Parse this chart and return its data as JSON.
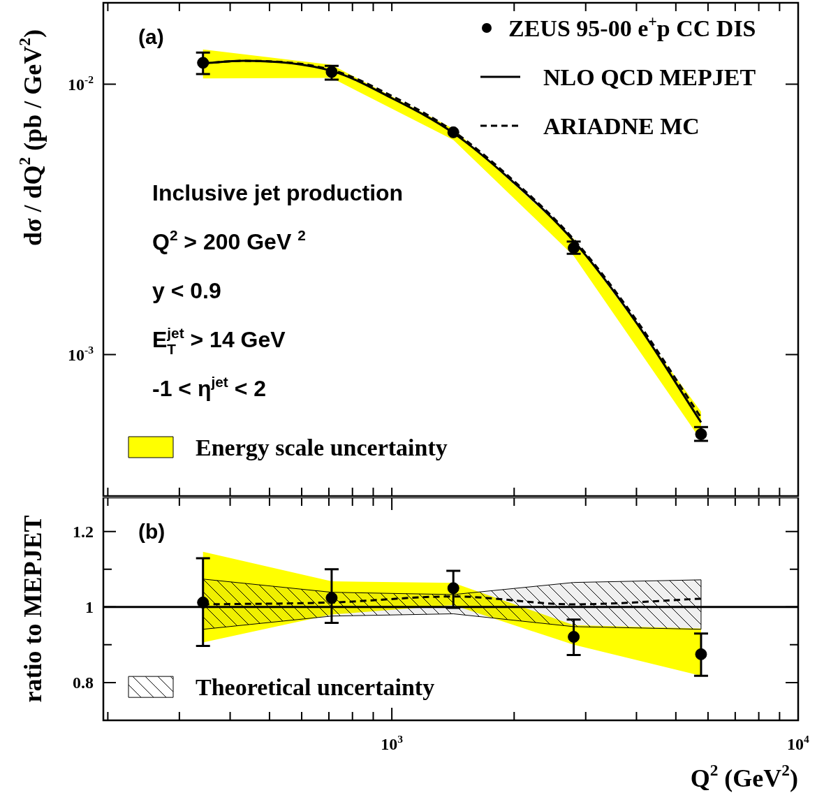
{
  "chart_data": [
    {
      "type": "line",
      "ylabel": "dσ / dQ$^{2}$ (pb / GeV$^{2}$)",
      "log": "xy",
      "xlim": [
        195,
        10000
      ],
      "ylim": [
        0.0003,
        0.02
      ],
      "tick_labels": "y",
      "legend": "top right",
      "xticks": [
        {
          "value": 200,
          "label": null
        },
        {
          "value": 300,
          "label": null
        },
        {
          "value": 400,
          "label": null
        },
        {
          "value": 500,
          "label": null
        },
        {
          "value": 600,
          "label": null
        },
        {
          "value": 700,
          "label": null
        },
        {
          "value": 800,
          "label": null
        },
        {
          "value": 900,
          "label": null
        },
        {
          "value": 1000,
          "label": null
        },
        {
          "value": 2000,
          "label": null
        },
        {
          "value": 3000,
          "label": null
        },
        {
          "value": 4000,
          "label": null
        },
        {
          "value": 5000,
          "label": null
        },
        {
          "value": 6000,
          "label": null
        },
        {
          "value": 7000,
          "label": null
        },
        {
          "value": 8000,
          "label": null
        },
        {
          "value": 9000,
          "label": null
        },
        {
          "value": 10000,
          "label": null
        }
      ],
      "yticks": [
        {
          "value": 0.001,
          "label": "10$^{-3}$"
        },
        {
          "value": 0.01,
          "label": "10$^{-2}$"
        }
      ],
      "annotations": [
        "(a)",
        "Inclusive jet production",
        "Q$^{2}$ > 200 GeV $^{2}$",
        "y < 0.9",
        "E$_{T}$$^{jet}$ > 14 GeV",
        "-1 < η$^{jet}$ < 2"
      ],
      "series": [
        {
          "name": "Energy scale uncertainty",
          "type": "area",
          "color": "#ffff00",
          "x": [
            343,
            711,
            1417,
            2803,
            5768
          ],
          "values": [
            null,
            null,
            null,
            null,
            null
          ],
          "lower": [
            0.0105,
            0.01055,
            0.00622,
            0.00232,
            0.000482
          ],
          "upper": [
            0.01345,
            0.0118,
            0.00684,
            0.00268,
            0.000615
          ]
        },
        {
          "name": "NLO QCD MEPJET",
          "color": "#000000",
          "line_style": "solid",
          "x": [
            343,
            431,
            711,
            1000,
            1417,
            1987,
            2803,
            3973,
            5768
          ],
          "values": [
            0.01195,
            0.0122,
            0.01119,
            0.00888,
            0.0066,
            0.004355,
            0.00263,
            0.00133,
            0.000562
          ]
        },
        {
          "name": "ARIADNE MC",
          "color": "#000000",
          "line_style": "dashed",
          "x": [
            343,
            431,
            711,
            1000,
            1417,
            1987,
            2803,
            3973,
            5768
          ],
          "values": [
            0.01195,
            0.0122,
            0.0113,
            0.00905,
            0.0067,
            0.00442,
            0.00267,
            0.00136,
            0.000585
          ]
        },
        {
          "name": "ZEUS 95-00 e$^{+}$p CC DIS",
          "type": "scatter",
          "marker": "circle",
          "color": "#000000",
          "x": [
            343,
            711,
            1417,
            2803,
            5768
          ],
          "values": [
            0.012,
            0.0111,
            0.00664,
            0.00248,
            0.000508
          ],
          "errors": [
            [
              0.0109,
              0.0131
            ],
            [
              0.0104,
              0.0117
            ],
            null,
            [
              0.00236,
              0.00262
            ],
            [
              0.00048,
              0.00054
            ]
          ]
        }
      ]
    },
    {
      "type": "line",
      "xlabel": "Q$^{2}$ (GeV$^{2}$)",
      "ylabel": "ratio to MEPJET",
      "log": "x",
      "xlim": [
        195,
        10000
      ],
      "ylim": [
        0.7,
        1.29
      ],
      "legend": "bottom left",
      "xticks": [
        {
          "value": 200,
          "label": null
        },
        {
          "value": 300,
          "label": null
        },
        {
          "value": 400,
          "label": null
        },
        {
          "value": 500,
          "label": null
        },
        {
          "value": 600,
          "label": null
        },
        {
          "value": 700,
          "label": null
        },
        {
          "value": 800,
          "label": null
        },
        {
          "value": 900,
          "label": null
        },
        {
          "value": 1000,
          "label": "10$^{3}$"
        },
        {
          "value": 2000,
          "label": null
        },
        {
          "value": 3000,
          "label": null
        },
        {
          "value": 4000,
          "label": null
        },
        {
          "value": 5000,
          "label": null
        },
        {
          "value": 6000,
          "label": null
        },
        {
          "value": 7000,
          "label": null
        },
        {
          "value": 8000,
          "label": null
        },
        {
          "value": 9000,
          "label": null
        },
        {
          "value": 10000,
          "label": "10$^{4}$"
        }
      ],
      "yticks": [
        0.8,
        {
          "value": 0.9,
          "label": null
        },
        1,
        {
          "value": 1.1,
          "label": null
        },
        1.2
      ],
      "ref_lines": [
        {
          "axis": "y",
          "value": 1,
          "color": "#000000"
        }
      ],
      "annotations": [
        "(b)"
      ],
      "series": [
        {
          "type": "area",
          "color": "#ffff00",
          "x": [
            343,
            711,
            1417,
            2803,
            5768
          ],
          "values": [
            null,
            null,
            null,
            null,
            null
          ],
          "lower": [
            0.906,
            0.98,
            1.005,
            0.9,
            0.818
          ],
          "upper": [
            1.146,
            1.068,
            1.064,
            0.952,
            0.943
          ]
        },
        {
          "name": "Theoretical uncertainty",
          "type": "area",
          "color": "#000000",
          "x": [
            343,
            711,
            1417,
            2803,
            5768
          ],
          "values": [
            null,
            null,
            null,
            null,
            null
          ],
          "lower": [
            0.941,
            0.976,
            0.982,
            0.948,
            0.941
          ],
          "upper": [
            1.074,
            1.039,
            1.033,
            1.065,
            1.072
          ]
        },
        {
          "color": "#000000",
          "line_style": "dashed",
          "x": [
            343,
            711,
            1417,
            2803,
            5768
          ],
          "values": [
            1.007,
            1.012,
            1.028,
            1.007,
            1.022
          ]
        },
        {
          "type": "scatter",
          "marker": "circle",
          "color": "#000000",
          "x": [
            343,
            711,
            1417,
            2803,
            5768
          ],
          "values": [
            1.012,
            1.024,
            1.05,
            0.921,
            0.875
          ],
          "errors": [
            [
              0.897,
              1.129
            ],
            [
              0.958,
              1.1
            ],
            [
              0.998,
              1.096
            ],
            [
              0.873,
              0.967
            ],
            [
              0.818,
              0.93
            ]
          ]
        }
      ]
    }
  ]
}
